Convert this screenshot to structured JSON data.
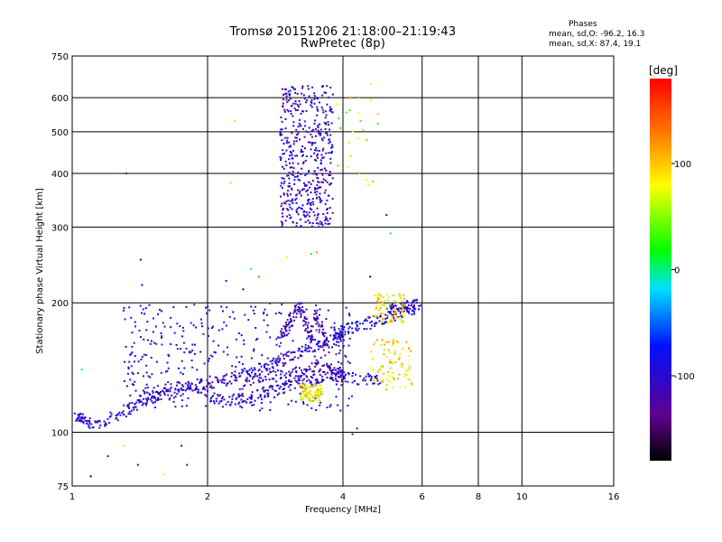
{
  "header": {
    "title_line1": "Tromsø 20151206 21:18:00–21:19:43",
    "title_line2": "RwPretec (8p)",
    "stats_heading": "Phases",
    "stats_o": "mean, sd,O: -96.2, 16.3",
    "stats_x": "mean, sd,X: 87.4, 19.1"
  },
  "chart_data": {
    "type": "scatter",
    "xlabel": "Frequency [MHz]",
    "ylabel": "Stationary phase Virtual Height [km]",
    "xscale": "log",
    "yscale": "log",
    "xlim": [
      1,
      16
    ],
    "ylim": [
      75,
      750
    ],
    "x_ticks": [
      1,
      2,
      4,
      6,
      8,
      10,
      16
    ],
    "x_tick_labels": [
      "1",
      "2",
      "4",
      "6",
      "8",
      "10",
      "16"
    ],
    "y_ticks": [
      75,
      100,
      200,
      300,
      400,
      500,
      600,
      750
    ],
    "y_tick_labels": [
      "75",
      "100",
      "200",
      "300",
      "400",
      "500",
      "600",
      "750"
    ],
    "grid": true,
    "colorbar": {
      "label": "[deg]",
      "range": [
        -180,
        180
      ],
      "ticks": [
        100,
        0,
        -100
      ],
      "tick_labels": [
        "100",
        "0",
        "-100"
      ],
      "colormap": "rainbow"
    },
    "traces": [
      {
        "phase": -105,
        "points": [
          [
            1.02,
            108
          ],
          [
            1.05,
            109
          ],
          [
            1.1,
            103
          ],
          [
            1.2,
            107
          ],
          [
            1.3,
            112
          ],
          [
            1.4,
            116
          ],
          [
            1.5,
            120
          ],
          [
            1.6,
            122
          ],
          [
            1.8,
            126
          ],
          [
            2.0,
            130
          ],
          [
            2.2,
            133
          ],
          [
            2.4,
            136
          ],
          [
            2.6,
            140
          ],
          [
            2.8,
            145
          ],
          [
            3.0,
            150
          ],
          [
            3.3,
            155
          ],
          [
            3.6,
            160
          ],
          [
            3.9,
            165
          ],
          [
            4.0,
            168
          ]
        ]
      },
      {
        "phase": -100,
        "points": [
          [
            1.4,
            122
          ],
          [
            1.6,
            126
          ],
          [
            1.8,
            128
          ],
          [
            2.0,
            122
          ],
          [
            2.2,
            119
          ],
          [
            2.4,
            120
          ],
          [
            2.6,
            122
          ],
          [
            2.8,
            125
          ],
          [
            3.0,
            128
          ],
          [
            3.2,
            131
          ],
          [
            3.5,
            133
          ],
          [
            3.8,
            136
          ],
          [
            4.0,
            134
          ],
          [
            4.5,
            133
          ],
          [
            4.8,
            133
          ]
        ]
      },
      {
        "phase": -110,
        "points": [
          [
            2.4,
            132
          ],
          [
            2.7,
            134
          ],
          [
            3.0,
            137
          ],
          [
            3.3,
            140
          ],
          [
            3.6,
            142
          ],
          [
            3.8,
            140
          ],
          [
            4.0,
            137
          ]
        ]
      },
      {
        "phase": -95,
        "points": [
          [
            3.8,
            170
          ],
          [
            4.0,
            173
          ],
          [
            4.3,
            176
          ],
          [
            4.6,
            180
          ],
          [
            4.9,
            184
          ],
          [
            5.3,
            188
          ],
          [
            5.6,
            191
          ],
          [
            5.9,
            198
          ]
        ]
      },
      {
        "phase": -100,
        "points": [
          [
            5.0,
            190
          ],
          [
            5.2,
            193
          ],
          [
            5.5,
            196
          ],
          [
            5.8,
            198
          ]
        ]
      },
      {
        "phase": -115,
        "points": [
          [
            2.9,
            165
          ],
          [
            3.0,
            175
          ],
          [
            3.1,
            186
          ],
          [
            3.2,
            196
          ],
          [
            3.3,
            180
          ],
          [
            3.4,
            165
          ],
          [
            3.5,
            190
          ],
          [
            3.6,
            170
          ],
          [
            3.7,
            155
          ]
        ]
      }
    ],
    "regions": [
      {
        "name": "f-layer-echo",
        "phase": -105,
        "f_range": [
          2.9,
          3.8
        ],
        "h_range": [
          300,
          640
        ]
      },
      {
        "name": "o-trace-cloud",
        "phase": -100,
        "f_range": [
          1.3,
          4.2
        ],
        "h_range": [
          112,
          200
        ]
      },
      {
        "name": "x-trace-a",
        "phase": 87,
        "f_range": [
          4.6,
          5.7
        ],
        "h_range": [
          125,
          165
        ]
      },
      {
        "name": "x-trace-b",
        "phase": 90,
        "f_range": [
          4.7,
          5.5
        ],
        "h_range": [
          180,
          210
        ]
      },
      {
        "name": "x-trace-c",
        "phase": 80,
        "f_range": [
          3.2,
          3.6
        ],
        "h_range": [
          118,
          130
        ]
      },
      {
        "name": "upper-stray",
        "phase": 60,
        "f_range": [
          3.8,
          4.8
        ],
        "h_range": [
          360,
          650
        ]
      }
    ],
    "isolated_points": [
      [
        1.05,
        140
      ],
      [
        1.1,
        79
      ],
      [
        1.2,
        88
      ],
      [
        1.3,
        93
      ],
      [
        1.4,
        84
      ],
      [
        1.6,
        80
      ],
      [
        1.75,
        93
      ],
      [
        1.8,
        84
      ],
      [
        1.32,
        400
      ],
      [
        2.3,
        530
      ],
      [
        2.25,
        380
      ],
      [
        2.4,
        215
      ],
      [
        2.6,
        230
      ],
      [
        2.5,
        240
      ],
      [
        2.2,
        225
      ],
      [
        3.0,
        255
      ],
      [
        3.4,
        260
      ],
      [
        3.5,
        262
      ],
      [
        4.2,
        99
      ],
      [
        4.3,
        102
      ],
      [
        1.04,
        107
      ],
      [
        1.06,
        105
      ],
      [
        1.42,
        252
      ],
      [
        1.43,
        220
      ],
      [
        4.6,
        230
      ],
      [
        5.0,
        320
      ],
      [
        5.1,
        290
      ]
    ]
  }
}
